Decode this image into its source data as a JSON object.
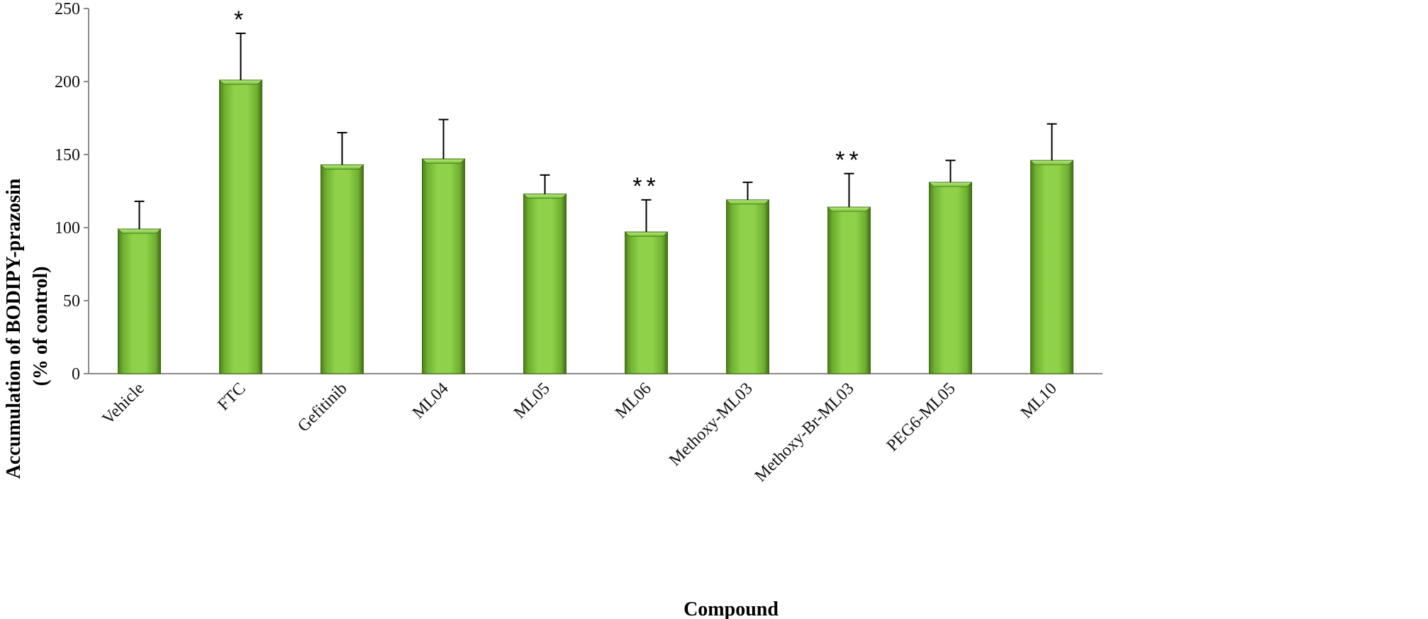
{
  "chart_data": {
    "type": "bar",
    "title": "",
    "xlabel": "Compound",
    "ylabel_lines": [
      "Accumulation of BODIPY-prazosin",
      "(% of control)"
    ],
    "ylim": [
      0,
      250
    ],
    "yticks": [
      0,
      50,
      100,
      150,
      200,
      250
    ],
    "grid": false,
    "legend": "none",
    "categories": [
      "Vehicle",
      "FTC",
      "Gefitinib",
      "ML04",
      "ML05",
      "ML06",
      "Methoxy-ML03",
      "Methoxy-Br-ML03",
      "PEG6-ML05",
      "ML10"
    ],
    "values": [
      99,
      201,
      143,
      147,
      123,
      97,
      119,
      114,
      131,
      146
    ],
    "error_upper": [
      19,
      32,
      22,
      27,
      13,
      22,
      12,
      23,
      15,
      25
    ],
    "annotations": [
      "",
      "*",
      "",
      "",
      "",
      "**",
      "",
      "**",
      "",
      ""
    ],
    "bar_color": "#7cc43a",
    "bar_edge_color": "#3f6b14"
  }
}
